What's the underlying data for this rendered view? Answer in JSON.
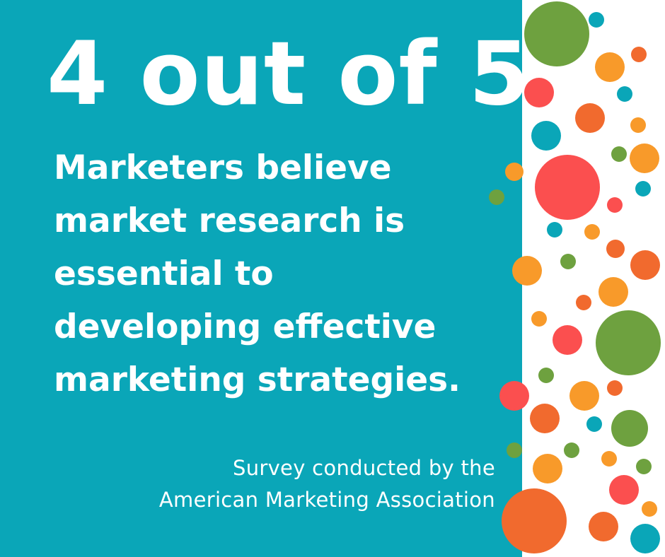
{
  "headline": "4 out of 5",
  "body_lines": [
    "Marketers believe",
    "market research is",
    "essential to",
    "developing effective",
    "marketing strategies."
  ],
  "source_lines": [
    "Survey conducted by the",
    "American Marketing Association"
  ],
  "colors": {
    "background": "#0aa6b8",
    "text": "#ffffff",
    "dot_green": "#6ea13f",
    "dot_orange": "#f89a2a",
    "dot_red_orange": "#f16a2e",
    "dot_red": "#fb4f4f",
    "dot_teal": "#0aa6b8"
  }
}
